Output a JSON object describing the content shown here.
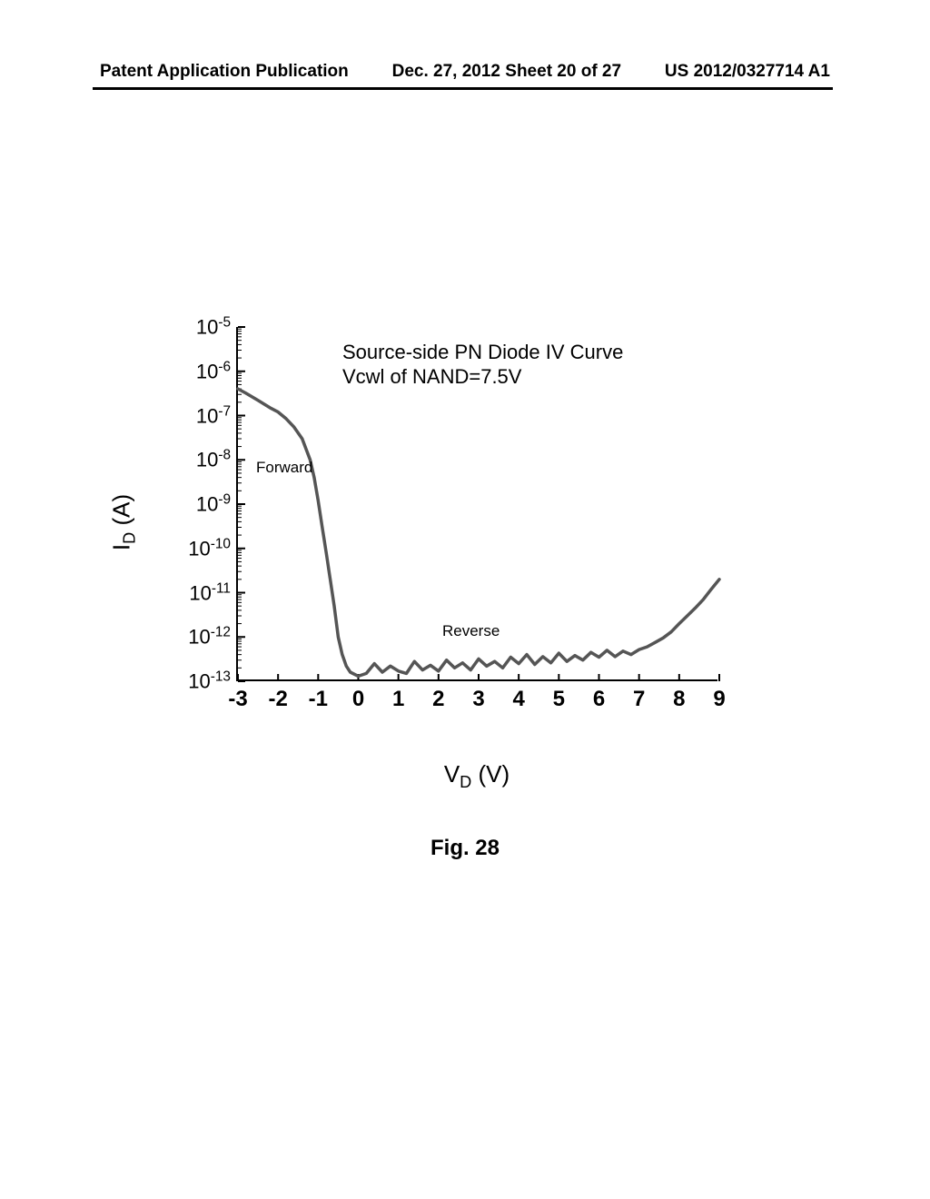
{
  "header": {
    "left": "Patent Application Publication",
    "center": "Dec. 27, 2012  Sheet 20 of 27",
    "right": "US 2012/0327714 A1"
  },
  "chart": {
    "type": "line",
    "title_line1": "Source-side PN Diode IV Curve",
    "title_line2": "Vcwl of NAND=7.5V",
    "ylabel_html": "I<sub>D</sub> (A)",
    "xlabel_html": "V<sub>D</sub> (V)",
    "y_scale": "log",
    "ylim": [
      1e-13,
      1e-05
    ],
    "xlim": [
      -3,
      9
    ],
    "y_ticks": [
      1e-13,
      1e-12,
      1e-11,
      1e-10,
      1e-09,
      1e-08,
      1e-07,
      1e-06,
      1e-05
    ],
    "y_tick_labels": [
      "10⁻¹³",
      "10⁻¹²",
      "10⁻¹¹",
      "10⁻¹⁰",
      "10⁻⁹",
      "10⁻⁸",
      "10⁻⁷",
      "10⁻⁶",
      "10⁻⁵"
    ],
    "x_ticks": [
      -3,
      -2,
      -1,
      0,
      1,
      2,
      3,
      4,
      5,
      6,
      7,
      8,
      9
    ],
    "line_color": "#555555",
    "line_width": 3.5,
    "background_color": "#ffffff",
    "annotations": {
      "forward": "Forward",
      "reverse": "Reverse"
    },
    "data_points": [
      {
        "x": -3.0,
        "y": 4e-07
      },
      {
        "x": -2.8,
        "y": 3.2e-07
      },
      {
        "x": -2.5,
        "y": 2.2e-07
      },
      {
        "x": -2.2,
        "y": 1.5e-07
      },
      {
        "x": -2.0,
        "y": 1.2e-07
      },
      {
        "x": -1.8,
        "y": 8.5e-08
      },
      {
        "x": -1.6,
        "y": 5.5e-08
      },
      {
        "x": -1.4,
        "y": 3e-08
      },
      {
        "x": -1.2,
        "y": 1e-08
      },
      {
        "x": -1.1,
        "y": 4e-09
      },
      {
        "x": -1.0,
        "y": 1.2e-09
      },
      {
        "x": -0.9,
        "y": 3e-10
      },
      {
        "x": -0.8,
        "y": 8e-11
      },
      {
        "x": -0.7,
        "y": 2e-11
      },
      {
        "x": -0.6,
        "y": 5e-12
      },
      {
        "x": -0.5,
        "y": 1e-12
      },
      {
        "x": -0.4,
        "y": 4e-13
      },
      {
        "x": -0.3,
        "y": 2.2e-13
      },
      {
        "x": -0.2,
        "y": 1.6e-13
      },
      {
        "x": 0.0,
        "y": 1.3e-13
      },
      {
        "x": 0.2,
        "y": 1.5e-13
      },
      {
        "x": 0.4,
        "y": 2.5e-13
      },
      {
        "x": 0.6,
        "y": 1.6e-13
      },
      {
        "x": 0.8,
        "y": 2.2e-13
      },
      {
        "x": 1.0,
        "y": 1.7e-13
      },
      {
        "x": 1.2,
        "y": 1.5e-13
      },
      {
        "x": 1.4,
        "y": 2.8e-13
      },
      {
        "x": 1.6,
        "y": 1.8e-13
      },
      {
        "x": 1.8,
        "y": 2.3e-13
      },
      {
        "x": 2.0,
        "y": 1.7e-13
      },
      {
        "x": 2.2,
        "y": 3e-13
      },
      {
        "x": 2.4,
        "y": 2e-13
      },
      {
        "x": 2.6,
        "y": 2.6e-13
      },
      {
        "x": 2.8,
        "y": 1.8e-13
      },
      {
        "x": 3.0,
        "y": 3.2e-13
      },
      {
        "x": 3.2,
        "y": 2.2e-13
      },
      {
        "x": 3.4,
        "y": 2.8e-13
      },
      {
        "x": 3.6,
        "y": 2e-13
      },
      {
        "x": 3.8,
        "y": 3.5e-13
      },
      {
        "x": 4.0,
        "y": 2.5e-13
      },
      {
        "x": 4.2,
        "y": 4e-13
      },
      {
        "x": 4.4,
        "y": 2.4e-13
      },
      {
        "x": 4.6,
        "y": 3.6e-13
      },
      {
        "x": 4.8,
        "y": 2.6e-13
      },
      {
        "x": 5.0,
        "y": 4.3e-13
      },
      {
        "x": 5.2,
        "y": 2.8e-13
      },
      {
        "x": 5.4,
        "y": 3.8e-13
      },
      {
        "x": 5.6,
        "y": 3e-13
      },
      {
        "x": 5.8,
        "y": 4.5e-13
      },
      {
        "x": 6.0,
        "y": 3.5e-13
      },
      {
        "x": 6.2,
        "y": 5e-13
      },
      {
        "x": 6.4,
        "y": 3.6e-13
      },
      {
        "x": 6.6,
        "y": 4.8e-13
      },
      {
        "x": 6.8,
        "y": 4e-13
      },
      {
        "x": 7.0,
        "y": 5.2e-13
      },
      {
        "x": 7.2,
        "y": 6e-13
      },
      {
        "x": 7.4,
        "y": 7.5e-13
      },
      {
        "x": 7.6,
        "y": 9.5e-13
      },
      {
        "x": 7.8,
        "y": 1.3e-12
      },
      {
        "x": 8.0,
        "y": 2e-12
      },
      {
        "x": 8.2,
        "y": 3e-12
      },
      {
        "x": 8.4,
        "y": 4.5e-12
      },
      {
        "x": 8.6,
        "y": 7e-12
      },
      {
        "x": 8.8,
        "y": 1.2e-11
      },
      {
        "x": 9.0,
        "y": 2e-11
      }
    ]
  },
  "caption": "Fig. 28"
}
